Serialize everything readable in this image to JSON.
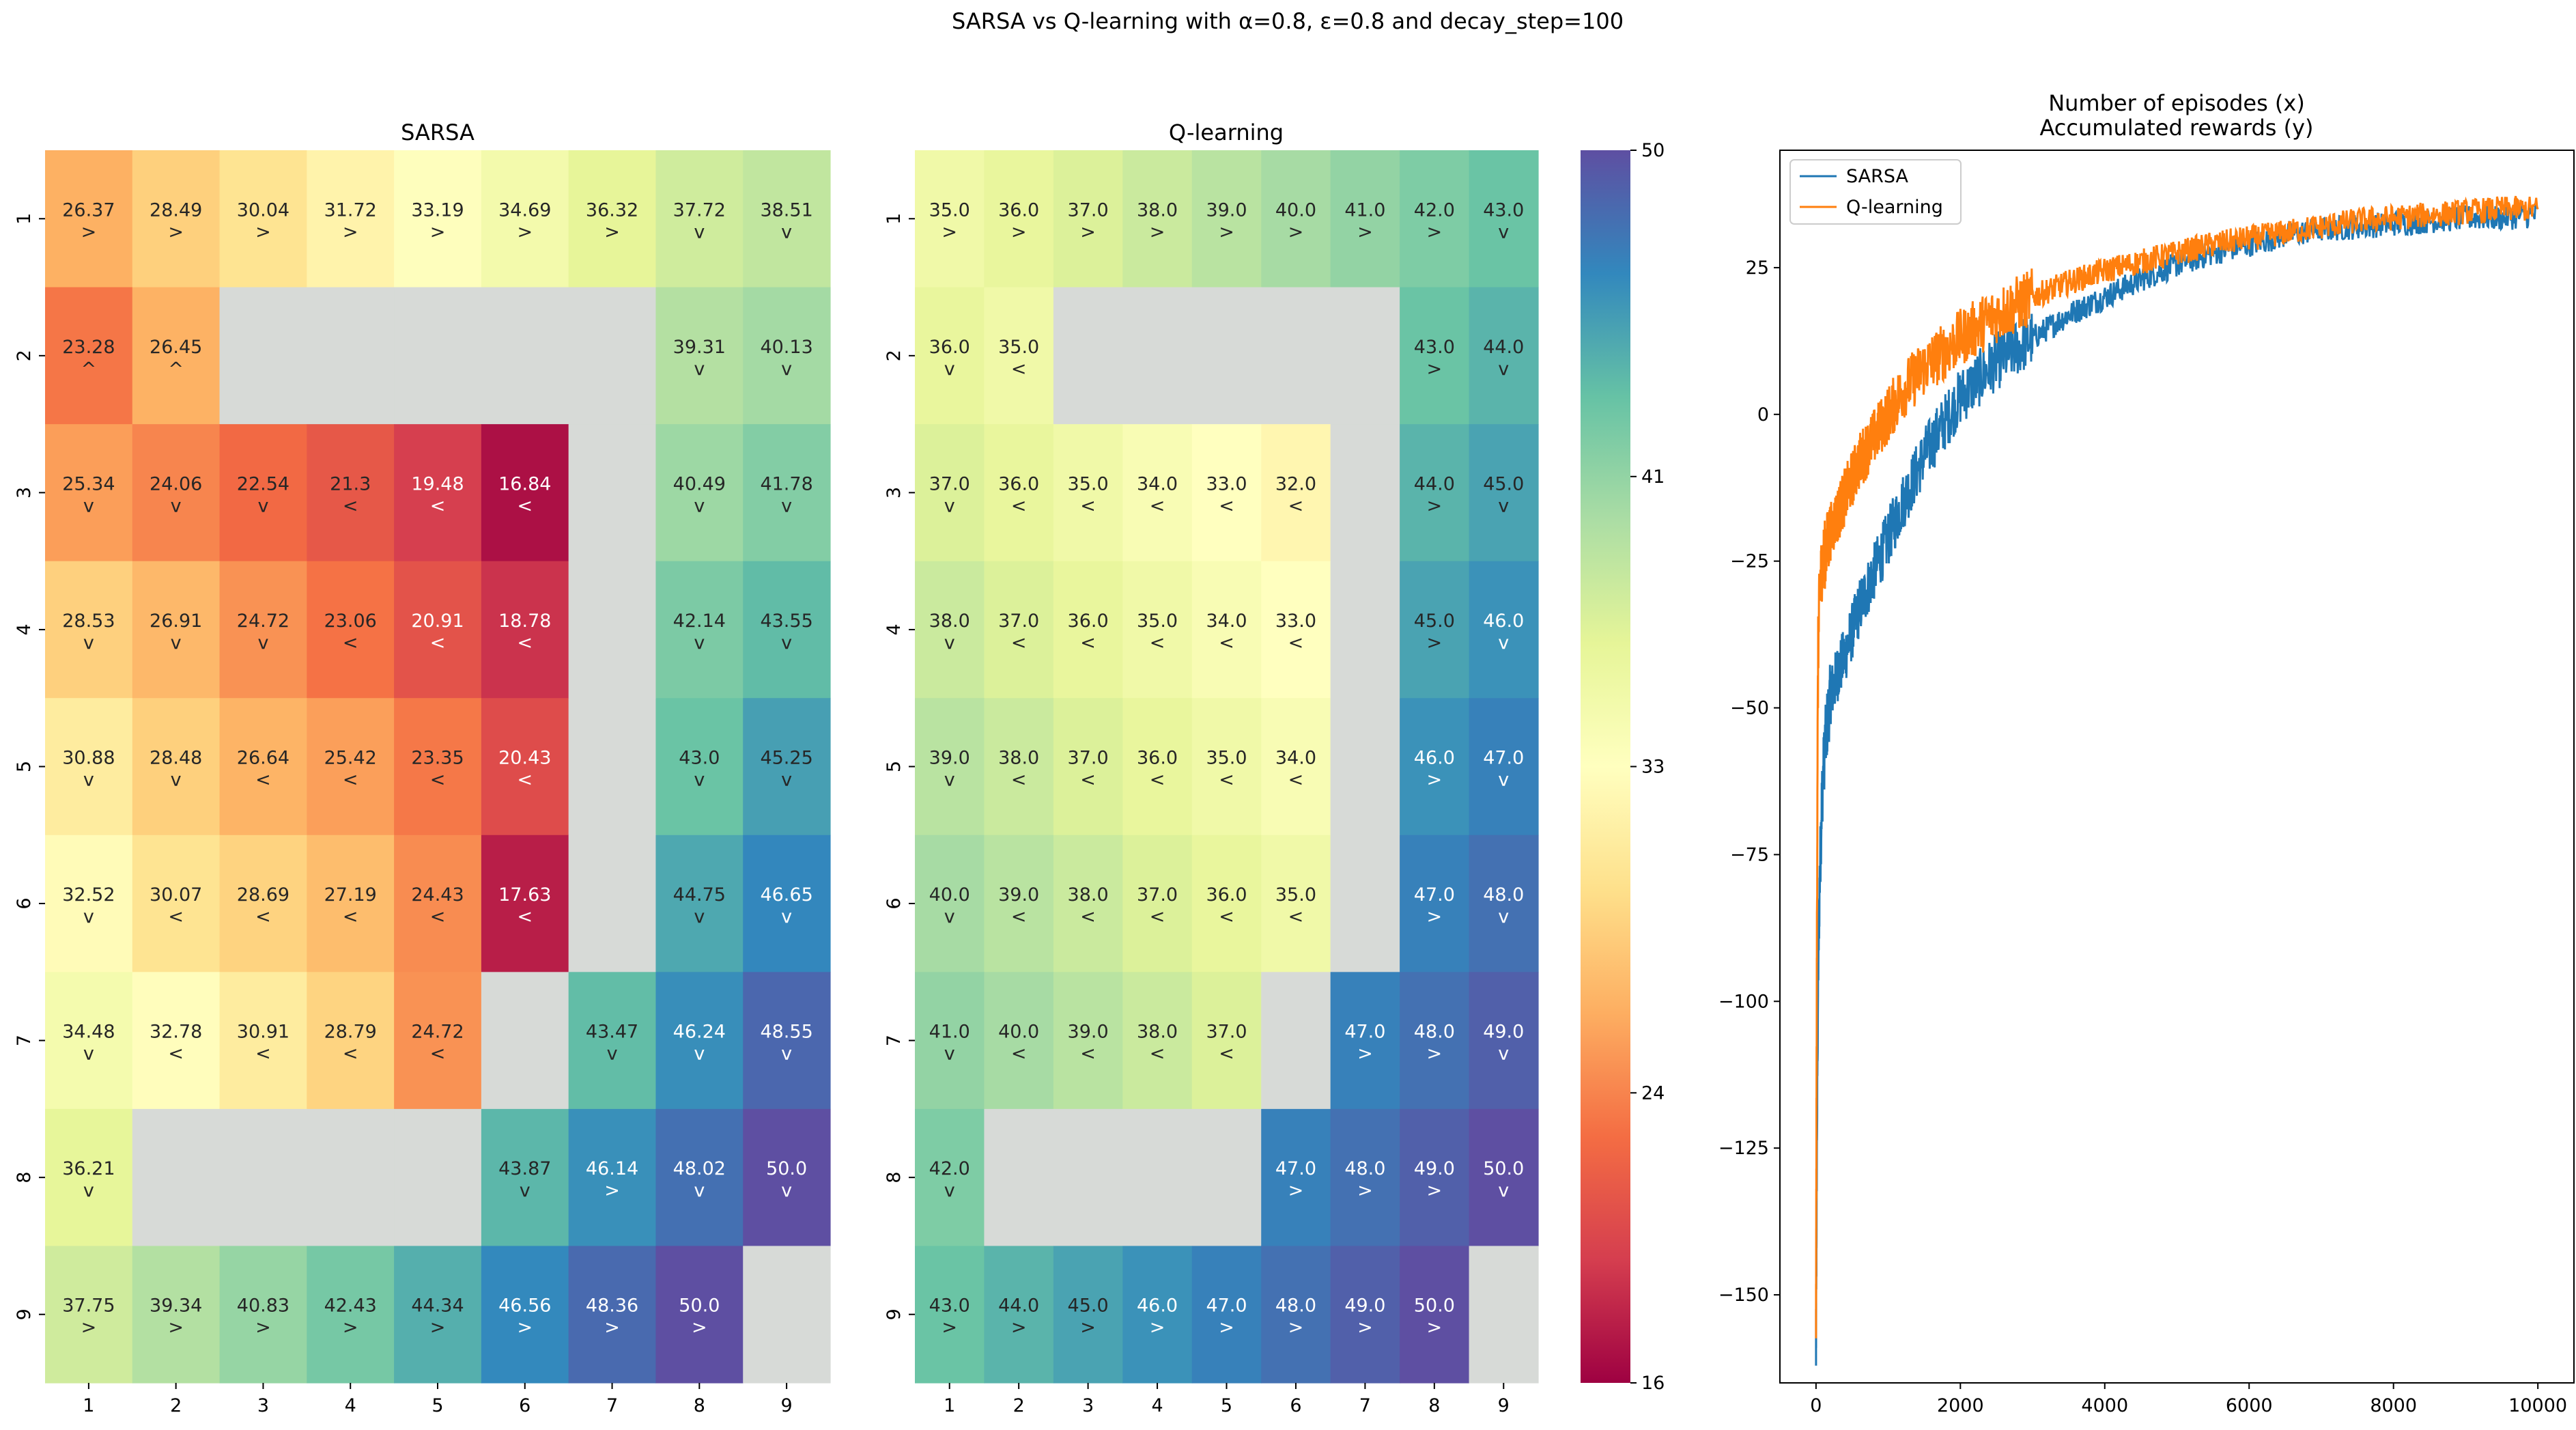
{
  "suptitle": "SARSA vs Q-learning with α=0.8, ε=0.8 and decay_step=100",
  "colorbar": {
    "vmin": 16,
    "vmax": 50,
    "ticks": [
      16,
      24,
      33,
      41,
      50
    ],
    "tick_labels": [
      "16",
      "24",
      "33",
      "41",
      "50"
    ],
    "colormap": "Spectral"
  },
  "chart_data": [
    {
      "type": "heatmap",
      "title": "SARSA",
      "rows": [
        "1",
        "2",
        "3",
        "4",
        "5",
        "6",
        "7",
        "8",
        "9"
      ],
      "cols": [
        "1",
        "2",
        "3",
        "4",
        "5",
        "6",
        "7",
        "8",
        "9"
      ],
      "values": [
        [
          26.37,
          28.49,
          30.04,
          31.72,
          33.19,
          34.69,
          36.32,
          37.72,
          38.51
        ],
        [
          23.28,
          26.45,
          null,
          null,
          null,
          null,
          null,
          39.31,
          40.13
        ],
        [
          25.34,
          24.06,
          22.54,
          21.3,
          19.48,
          16.84,
          null,
          40.49,
          41.78
        ],
        [
          28.53,
          26.91,
          24.72,
          23.06,
          20.91,
          18.78,
          null,
          42.14,
          43.55
        ],
        [
          30.88,
          28.48,
          26.64,
          25.42,
          23.35,
          20.43,
          null,
          43.0,
          45.25
        ],
        [
          32.52,
          30.07,
          28.69,
          27.19,
          24.43,
          17.63,
          null,
          44.75,
          46.65
        ],
        [
          34.48,
          32.78,
          30.91,
          28.79,
          24.72,
          null,
          43.47,
          46.24,
          48.55
        ],
        [
          36.21,
          null,
          null,
          null,
          null,
          43.87,
          46.14,
          48.02,
          50.0
        ],
        [
          37.75,
          39.34,
          40.83,
          42.43,
          44.34,
          46.56,
          48.36,
          50.0,
          null
        ]
      ],
      "labels": [
        [
          "26.37",
          "28.49",
          "30.04",
          "31.72",
          "33.19",
          "34.69",
          "36.32",
          "37.72",
          "38.51"
        ],
        [
          "23.28",
          "26.45",
          "",
          "",
          "",
          "",
          "",
          "39.31",
          "40.13"
        ],
        [
          "25.34",
          "24.06",
          "22.54",
          "21.3",
          "19.48",
          "16.84",
          "",
          "40.49",
          "41.78"
        ],
        [
          "28.53",
          "26.91",
          "24.72",
          "23.06",
          "20.91",
          "18.78",
          "",
          "42.14",
          "43.55"
        ],
        [
          "30.88",
          "28.48",
          "26.64",
          "25.42",
          "23.35",
          "20.43",
          "",
          "43.0",
          "45.25"
        ],
        [
          "32.52",
          "30.07",
          "28.69",
          "27.19",
          "24.43",
          "17.63",
          "",
          "44.75",
          "46.65"
        ],
        [
          "34.48",
          "32.78",
          "30.91",
          "28.79",
          "24.72",
          "",
          "43.47",
          "46.24",
          "48.55"
        ],
        [
          "36.21",
          "",
          "",
          "",
          "",
          "43.87",
          "46.14",
          "48.02",
          "50.0"
        ],
        [
          "37.75",
          "39.34",
          "40.83",
          "42.43",
          "44.34",
          "46.56",
          "48.36",
          "50.0",
          ""
        ]
      ],
      "arrows": [
        [
          ">",
          ">",
          ">",
          ">",
          ">",
          ">",
          ">",
          "v",
          "v"
        ],
        [
          "^",
          "^",
          "",
          "",
          "",
          "",
          "",
          "v",
          "v"
        ],
        [
          "v",
          "v",
          "v",
          "<",
          "<",
          "<",
          "",
          "v",
          "v"
        ],
        [
          "v",
          "v",
          "v",
          "<",
          "<",
          "<",
          "",
          "v",
          "v"
        ],
        [
          "v",
          "v",
          "<",
          "<",
          "<",
          "<",
          "",
          "v",
          "v"
        ],
        [
          "v",
          "<",
          "<",
          "<",
          "<",
          "<",
          "",
          "v",
          "v"
        ],
        [
          "v",
          "<",
          "<",
          "<",
          "<",
          "",
          "v",
          "v",
          "v"
        ],
        [
          "v",
          "",
          "",
          "",
          "",
          "v",
          ">",
          "v",
          "v"
        ],
        [
          ">",
          ">",
          ">",
          ">",
          ">",
          ">",
          ">",
          ">",
          ""
        ]
      ]
    },
    {
      "type": "heatmap",
      "title": "Q-learning",
      "rows": [
        "1",
        "2",
        "3",
        "4",
        "5",
        "6",
        "7",
        "8",
        "9"
      ],
      "cols": [
        "1",
        "2",
        "3",
        "4",
        "5",
        "6",
        "7",
        "8",
        "9"
      ],
      "values": [
        [
          35.0,
          36.0,
          37.0,
          38.0,
          39.0,
          40.0,
          41.0,
          42.0,
          43.0
        ],
        [
          36.0,
          35.0,
          null,
          null,
          null,
          null,
          null,
          43.0,
          44.0
        ],
        [
          37.0,
          36.0,
          35.0,
          34.0,
          33.0,
          32.0,
          null,
          44.0,
          45.0
        ],
        [
          38.0,
          37.0,
          36.0,
          35.0,
          34.0,
          33.0,
          null,
          45.0,
          46.0
        ],
        [
          39.0,
          38.0,
          37.0,
          36.0,
          35.0,
          34.0,
          null,
          46.0,
          47.0
        ],
        [
          40.0,
          39.0,
          38.0,
          37.0,
          36.0,
          35.0,
          null,
          47.0,
          48.0
        ],
        [
          41.0,
          40.0,
          39.0,
          38.0,
          37.0,
          null,
          47.0,
          48.0,
          49.0
        ],
        [
          42.0,
          null,
          null,
          null,
          null,
          47.0,
          48.0,
          49.0,
          50.0
        ],
        [
          43.0,
          44.0,
          45.0,
          46.0,
          47.0,
          48.0,
          49.0,
          50.0,
          null
        ]
      ],
      "labels": [
        [
          "35.0",
          "36.0",
          "37.0",
          "38.0",
          "39.0",
          "40.0",
          "41.0",
          "42.0",
          "43.0"
        ],
        [
          "36.0",
          "35.0",
          "",
          "",
          "",
          "",
          "",
          "43.0",
          "44.0"
        ],
        [
          "37.0",
          "36.0",
          "35.0",
          "34.0",
          "33.0",
          "32.0",
          "",
          "44.0",
          "45.0"
        ],
        [
          "38.0",
          "37.0",
          "36.0",
          "35.0",
          "34.0",
          "33.0",
          "",
          "45.0",
          "46.0"
        ],
        [
          "39.0",
          "38.0",
          "37.0",
          "36.0",
          "35.0",
          "34.0",
          "",
          "46.0",
          "47.0"
        ],
        [
          "40.0",
          "39.0",
          "38.0",
          "37.0",
          "36.0",
          "35.0",
          "",
          "47.0",
          "48.0"
        ],
        [
          "41.0",
          "40.0",
          "39.0",
          "38.0",
          "37.0",
          "",
          "47.0",
          "48.0",
          "49.0"
        ],
        [
          "42.0",
          "",
          "",
          "",
          "",
          "47.0",
          "48.0",
          "49.0",
          "50.0"
        ],
        [
          "43.0",
          "44.0",
          "45.0",
          "46.0",
          "47.0",
          "48.0",
          "49.0",
          "50.0",
          ""
        ]
      ],
      "arrows": [
        [
          ">",
          ">",
          ">",
          ">",
          ">",
          ">",
          ">",
          ">",
          "v"
        ],
        [
          "v",
          "<",
          "",
          "",
          "",
          "",
          "",
          ">",
          "v"
        ],
        [
          "v",
          "<",
          "<",
          "<",
          "<",
          "<",
          "",
          ">",
          "v"
        ],
        [
          "v",
          "<",
          "<",
          "<",
          "<",
          "<",
          "",
          ">",
          "v"
        ],
        [
          "v",
          "<",
          "<",
          "<",
          "<",
          "<",
          "",
          ">",
          "v"
        ],
        [
          "v",
          "<",
          "<",
          "<",
          "<",
          "<",
          "",
          ">",
          "v"
        ],
        [
          "v",
          "<",
          "<",
          "<",
          "<",
          "",
          ">",
          ">",
          "v"
        ],
        [
          "v",
          "",
          "",
          "",
          "",
          ">",
          ">",
          ">",
          "v"
        ],
        [
          ">",
          ">",
          ">",
          ">",
          ">",
          ">",
          ">",
          ">",
          ""
        ]
      ]
    },
    {
      "type": "line",
      "title": "Number of episodes (x)\nAccumulated rewards (y)",
      "xlim": [
        -500,
        10500
      ],
      "ylim": [
        -165,
        45
      ],
      "xticks": [
        0,
        2000,
        4000,
        6000,
        8000,
        10000
      ],
      "xtick_labels": [
        "0",
        "2000",
        "4000",
        "6000",
        "8000",
        "10000"
      ],
      "yticks": [
        -150,
        -125,
        -100,
        -75,
        -50,
        -25,
        0,
        25
      ],
      "ytick_labels": [
        "−150",
        "−125",
        "−100",
        "−75",
        "−50",
        "−25",
        "0",
        "25"
      ],
      "grid": false,
      "legend": "top-left",
      "series": [
        {
          "name": "SARSA",
          "color": "#1f77b4",
          "x": [
            0,
            10,
            20,
            30,
            50,
            80,
            120,
            160,
            200,
            300,
            400,
            500,
            600,
            800,
            1000,
            1200,
            1500,
            1800,
            2000,
            2500,
            3000,
            3500,
            4000,
            4500,
            5000,
            5500,
            6000,
            6500,
            7000,
            7500,
            8000,
            8500,
            9000,
            9500,
            10000
          ],
          "y": [
            -160,
            -130,
            -110,
            -95,
            -80,
            -66,
            -57,
            -52,
            -48,
            -44,
            -41,
            -37,
            -33,
            -27,
            -21,
            -15,
            -7,
            -1,
            3,
            9,
            13,
            17,
            20,
            23,
            25.5,
            27.5,
            29,
            30.5,
            31.5,
            32,
            32.5,
            33,
            33.5,
            33.5,
            34
          ]
        },
        {
          "name": "Q-learning",
          "color": "#ff7f0e",
          "x": [
            0,
            10,
            20,
            30,
            50,
            80,
            120,
            160,
            200,
            300,
            400,
            500,
            600,
            800,
            1000,
            1200,
            1500,
            1800,
            2000,
            2500,
            3000,
            3500,
            4000,
            4500,
            5000,
            5500,
            6000,
            6500,
            7000,
            7500,
            8000,
            8500,
            9000,
            9500,
            10000
          ],
          "y": [
            -155,
            -100,
            -60,
            -40,
            -30,
            -26,
            -24,
            -22,
            -20,
            -17,
            -14,
            -11,
            -8,
            -4,
            0,
            4,
            8,
            11,
            13,
            17,
            20,
            22.5,
            24.5,
            26,
            27.5,
            29,
            30,
            31,
            32,
            33,
            33.5,
            34,
            34.5,
            35,
            35
          ]
        }
      ]
    }
  ]
}
